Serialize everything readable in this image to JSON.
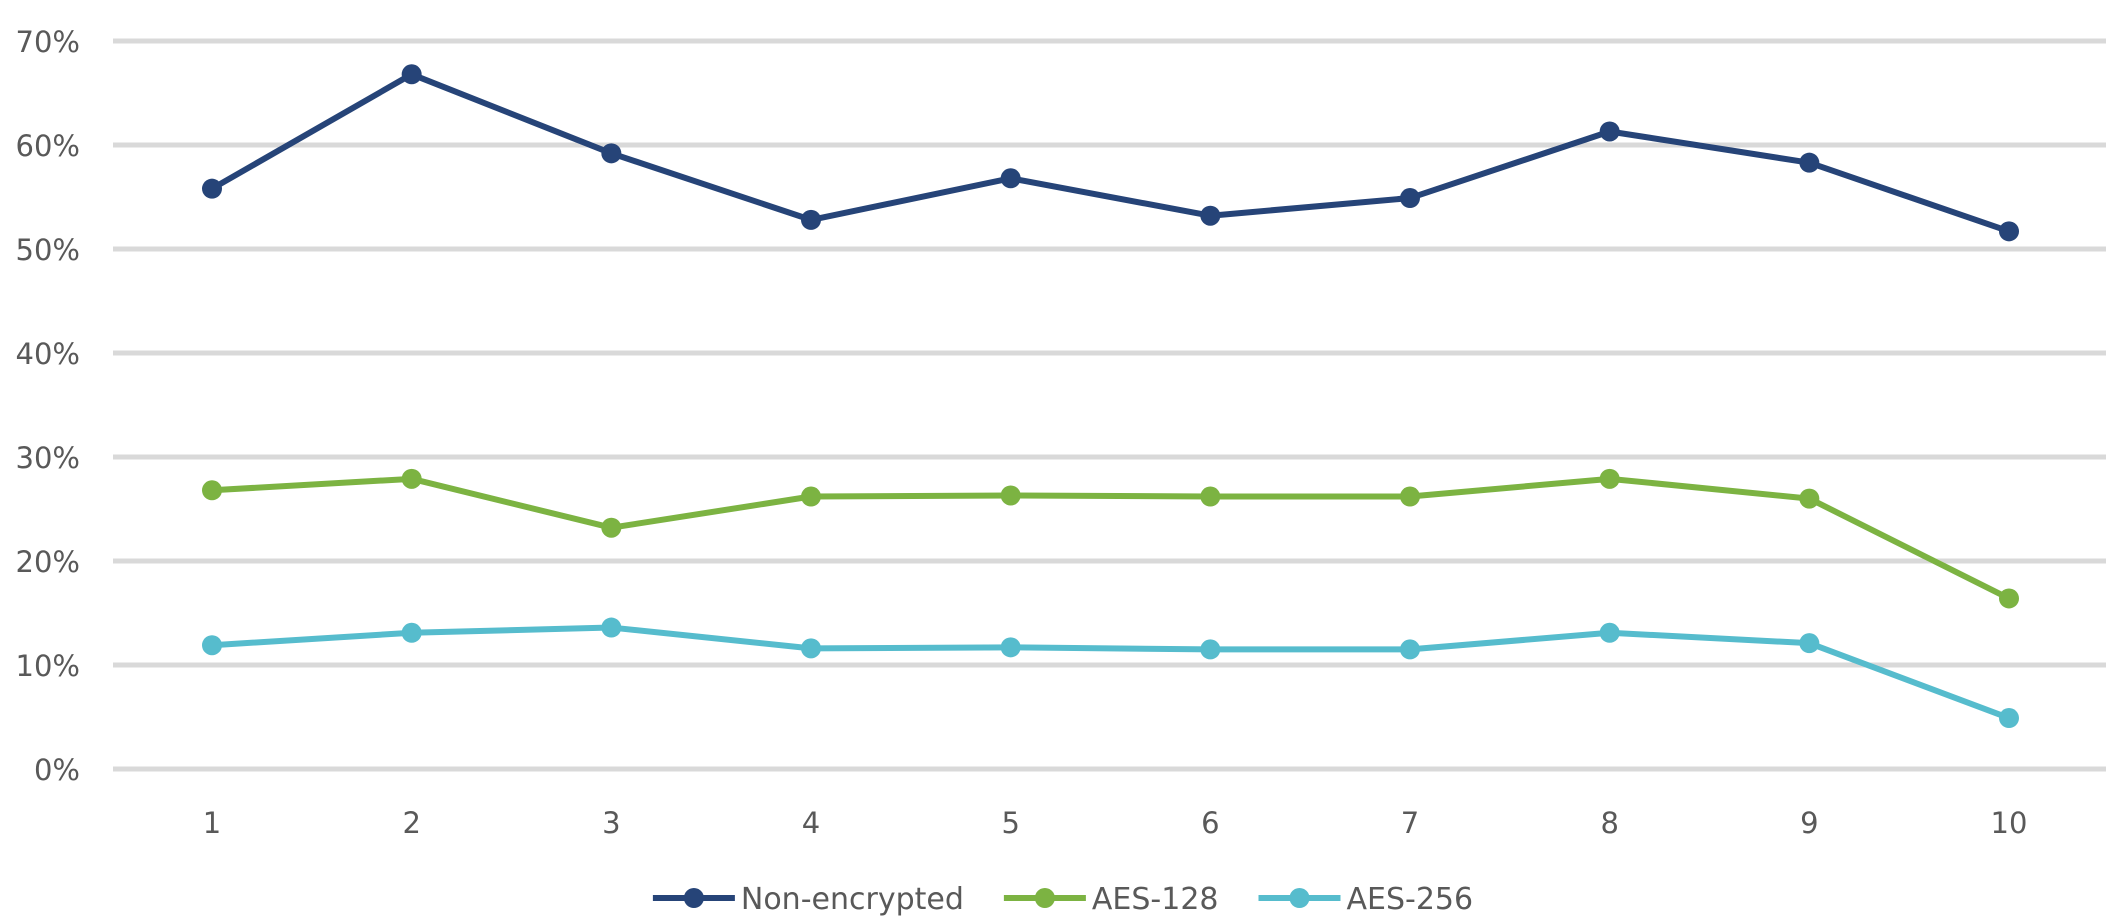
{
  "chart_data": {
    "type": "line",
    "title": "",
    "xlabel": "",
    "ylabel": "",
    "categories": [
      "1",
      "2",
      "3",
      "4",
      "5",
      "6",
      "7",
      "8",
      "9",
      "10"
    ],
    "ylim": [
      0,
      70
    ],
    "yticks": [
      0,
      10,
      20,
      30,
      40,
      50,
      60,
      70
    ],
    "ytick_labels": [
      "0%",
      "10%",
      "20%",
      "30%",
      "40%",
      "50%",
      "60%",
      "70%"
    ],
    "grid": true,
    "legend_position": "bottom-center",
    "series": [
      {
        "name": "Non-encrypted",
        "color": "#264478",
        "values": [
          55.8,
          66.8,
          59.2,
          52.8,
          56.8,
          53.2,
          54.9,
          61.3,
          58.3,
          51.7
        ]
      },
      {
        "name": "AES-128",
        "color": "#7cb342",
        "values": [
          26.8,
          27.9,
          23.2,
          26.2,
          26.3,
          26.2,
          26.2,
          27.9,
          26.0,
          16.4
        ]
      },
      {
        "name": "AES-256",
        "color": "#56bccd",
        "values": [
          11.9,
          13.1,
          13.6,
          11.6,
          11.7,
          11.5,
          11.5,
          13.1,
          12.1,
          4.9
        ]
      }
    ]
  }
}
